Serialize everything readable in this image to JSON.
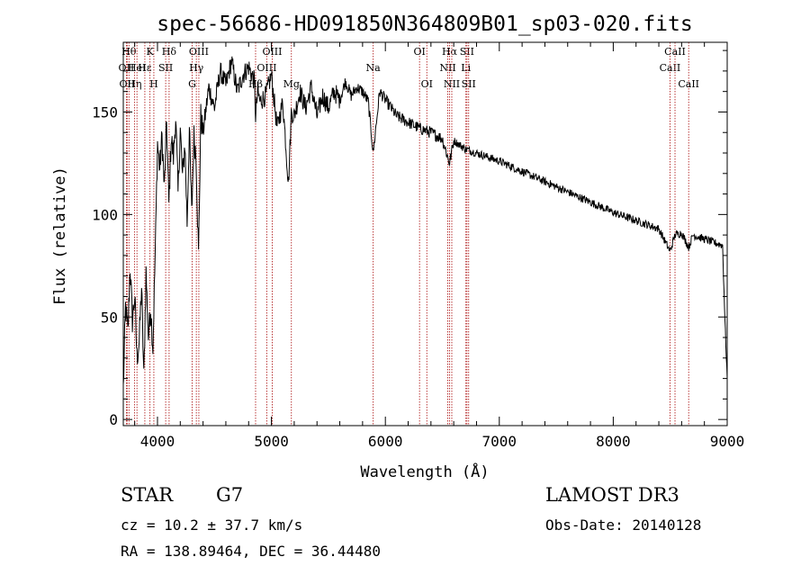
{
  "chart_data": {
    "type": "line",
    "title": "spec-56686-HD091850N364809B01_sp03-020.fits",
    "xlabel": "Wavelength (Å)",
    "ylabel": "Flux (relative)",
    "xlim": [
      3700,
      9000
    ],
    "ylim": [
      -3,
      184
    ],
    "xticks": [
      4000,
      5000,
      6000,
      7000,
      8000,
      9000
    ],
    "yticks": [
      0,
      50,
      100,
      150
    ],
    "series": [
      {
        "name": "flux",
        "x": [
          3700,
          3720,
          3740,
          3760,
          3780,
          3800,
          3820,
          3840,
          3860,
          3880,
          3900,
          3920,
          3940,
          3960,
          3980,
          4000,
          4020,
          4040,
          4060,
          4080,
          4100,
          4120,
          4140,
          4160,
          4180,
          4200,
          4220,
          4240,
          4260,
          4280,
          4300,
          4320,
          4340,
          4360,
          4380,
          4400,
          4450,
          4500,
          4550,
          4600,
          4650,
          4700,
          4750,
          4800,
          4850,
          4861,
          4880,
          4900,
          4950,
          5000,
          5050,
          5100,
          5150,
          5175,
          5200,
          5250,
          5300,
          5350,
          5400,
          5450,
          5500,
          5550,
          5600,
          5650,
          5700,
          5750,
          5800,
          5850,
          5893,
          5950,
          6000,
          6100,
          6200,
          6300,
          6400,
          6500,
          6563,
          6600,
          6700,
          6800,
          6900,
          7000,
          7200,
          7400,
          7600,
          7800,
          8000,
          8200,
          8400,
          8498,
          8542,
          8600,
          8662,
          8700,
          8800,
          8900,
          8960,
          8980,
          9000
        ],
        "values": [
          15,
          55,
          42,
          75,
          48,
          60,
          30,
          38,
          65,
          20,
          72,
          40,
          55,
          35,
          80,
          135,
          122,
          138,
          112,
          145,
          105,
          138,
          128,
          148,
          110,
          142,
          118,
          135,
          96,
          142,
          100,
          138,
          128,
          80,
          148,
          140,
          162,
          152,
          170,
          163,
          175,
          160,
          168,
          172,
          165,
          148,
          160,
          155,
          158,
          168,
          142,
          155,
          115,
          150,
          148,
          160,
          152,
          162,
          148,
          158,
          152,
          160,
          156,
          165,
          158,
          162,
          160,
          155,
          130,
          160,
          156,
          148,
          145,
          142,
          140,
          137,
          125,
          136,
          132,
          130,
          128,
          126,
          121,
          116,
          111,
          106,
          101,
          97,
          93,
          82,
          90,
          91,
          84,
          90,
          88,
          86,
          85,
          48,
          20
        ]
      }
    ],
    "lines": [
      {
        "wave": 3750,
        "label": "Hθ",
        "row": 0
      },
      {
        "wave": 3727,
        "label": "OII",
        "row": 1
      },
      {
        "wave": 3734,
        "label": "OII",
        "row": 2
      },
      {
        "wave": 3798,
        "label": "Hη",
        "row": 2
      },
      {
        "wave": 3820,
        "label": "HeI",
        "row": 1
      },
      {
        "wave": 3889,
        "label": "Hε",
        "row": 1
      },
      {
        "wave": 3934,
        "label": "K",
        "row": 0
      },
      {
        "wave": 3968,
        "label": "H",
        "row": 2
      },
      {
        "wave": 4072,
        "label": "SII",
        "row": 1
      },
      {
        "wave": 4102,
        "label": "Hδ",
        "row": 0
      },
      {
        "wave": 4304,
        "label": "G",
        "row": 2
      },
      {
        "wave": 4341,
        "label": "Hγ",
        "row": 1
      },
      {
        "wave": 4363,
        "label": "OIII",
        "row": 0
      },
      {
        "wave": 4861,
        "label": "Hβ",
        "row": 2
      },
      {
        "wave": 4959,
        "label": "OIII",
        "row": 1
      },
      {
        "wave": 5007,
        "label": "OIII",
        "row": 0
      },
      {
        "wave": 5175,
        "label": "Mg",
        "row": 2
      },
      {
        "wave": 5893,
        "label": "Na",
        "row": 1
      },
      {
        "wave": 6300,
        "label": "OI",
        "row": 0
      },
      {
        "wave": 6364,
        "label": "OI",
        "row": 2
      },
      {
        "wave": 6548,
        "label": "NII",
        "row": 1
      },
      {
        "wave": 6563,
        "label": "Hα",
        "row": 0
      },
      {
        "wave": 6583,
        "label": "NII",
        "row": 2
      },
      {
        "wave": 6707,
        "label": "Li",
        "row": 1
      },
      {
        "wave": 6716,
        "label": "SII",
        "row": 0
      },
      {
        "wave": 6731,
        "label": "SII",
        "row": 2
      },
      {
        "wave": 8498,
        "label": "CaII",
        "row": 1
      },
      {
        "wave": 8542,
        "label": "CaII",
        "row": 0
      },
      {
        "wave": 8662,
        "label": "CaII",
        "row": 2
      }
    ],
    "line_color": "#b22222",
    "data_color": "#000000"
  },
  "info": {
    "object_class": "STAR",
    "subclass": "G7",
    "survey": "LAMOST DR3",
    "cz": "cz = 10.2 ± 37.7 km/s",
    "obs_date": "Obs-Date: 20140128",
    "coords": "RA = 138.89464, DEC =  36.44480"
  }
}
